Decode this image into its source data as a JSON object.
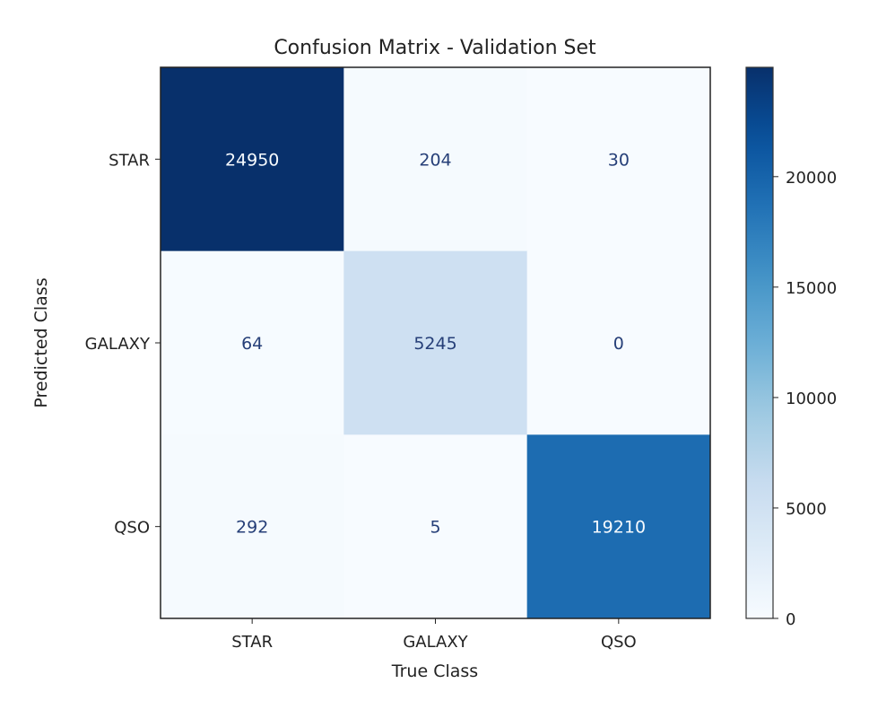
{
  "chart_data": {
    "type": "heatmap",
    "title": "Confusion Matrix - Validation Set",
    "xlabel": "True Class",
    "ylabel": "Predicted Class",
    "x_categories": [
      "STAR",
      "GALAXY",
      "QSO"
    ],
    "y_categories": [
      "STAR",
      "GALAXY",
      "QSO"
    ],
    "values": [
      [
        24950,
        204,
        30
      ],
      [
        64,
        5245,
        0
      ],
      [
        292,
        5,
        19210
      ]
    ],
    "colormap": "Blues",
    "color_range": [
      0,
      24950
    ],
    "colorbar_ticks": [
      0,
      5000,
      10000,
      15000,
      20000
    ],
    "colorbar_tick_labels": [
      "0",
      "5000",
      "10000",
      "15000",
      "20000"
    ],
    "text_color_dark": "#263f78",
    "text_color_light": "#f7fbff",
    "grid": false
  }
}
